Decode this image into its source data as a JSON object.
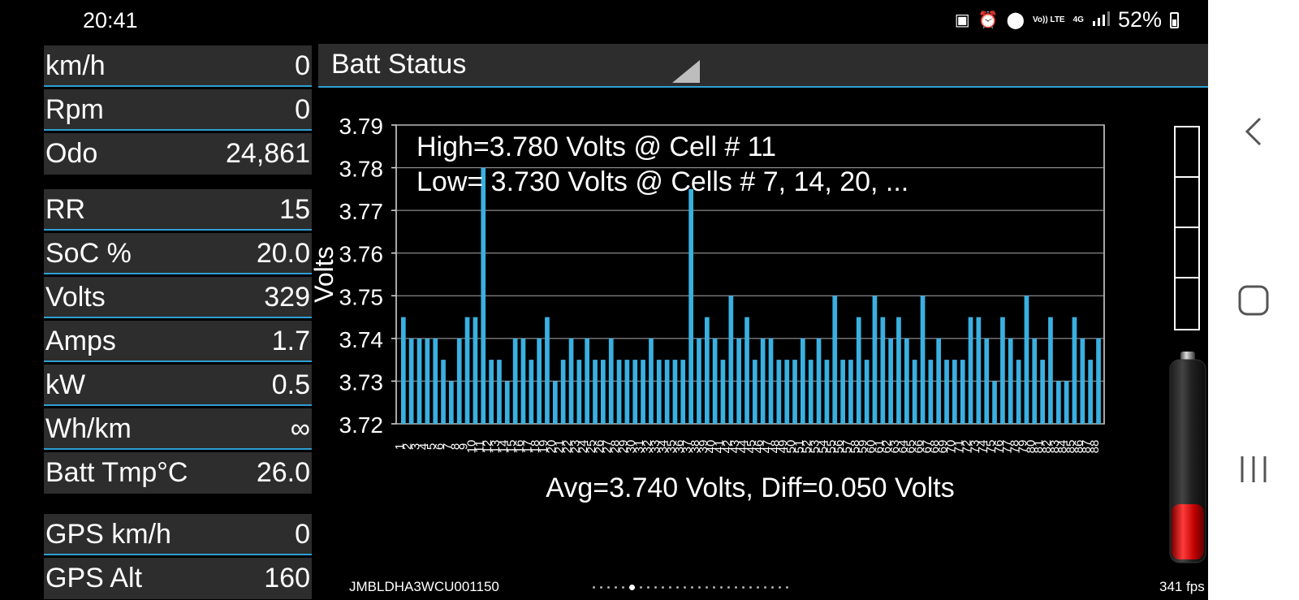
{
  "status_bar": {
    "time": "20:41",
    "icons": [
      "battery-saver-icon",
      "alarm-icon",
      "location-icon",
      "volte-icon",
      "4g-icon",
      "signal-icon"
    ],
    "volte_text": "Vo)) LTE",
    "net_text": "4G",
    "battery_percent": "52%"
  },
  "readings": [
    {
      "label": "km/h",
      "value": "0"
    },
    {
      "label": "Rpm",
      "value": "0"
    },
    {
      "label": "Odo",
      "value": "24,861"
    },
    {
      "label": "RR",
      "value": "15"
    },
    {
      "label": "SoC %",
      "value": "20.0"
    },
    {
      "label": "Volts",
      "value": "329"
    },
    {
      "label": "Amps",
      "value": "1.7"
    },
    {
      "label": "kW",
      "value": "0.5"
    },
    {
      "label": "Wh/km",
      "value": "∞"
    },
    {
      "label": "Batt Tmp°C",
      "value": "26.0"
    },
    {
      "label": "GPS km/h",
      "value": "0"
    },
    {
      "label": "GPS Alt",
      "value": "160"
    }
  ],
  "header": {
    "title": "Batt Status"
  },
  "chart_data": {
    "type": "bar",
    "ylabel": "Volts",
    "ylim": [
      3.72,
      3.79
    ],
    "yticks": [
      "3.79",
      "3.78",
      "3.77",
      "3.76",
      "3.75",
      "3.74",
      "3.73",
      "3.72"
    ],
    "grid": true,
    "annotation_high": "High=3.780 Volts @ Cell # 11",
    "annotation_low": "Low= 3.730 Volts @ Cells # 7, 14, 20,  ...",
    "footer": "Avg=3.740 Volts, Diff=0.050 Volts",
    "bar_color": "#3ab0e0",
    "values": [
      3.745,
      3.74,
      3.74,
      3.74,
      3.74,
      3.735,
      3.73,
      3.74,
      3.745,
      3.745,
      3.78,
      3.735,
      3.735,
      3.73,
      3.74,
      3.74,
      3.735,
      3.74,
      3.745,
      3.73,
      3.735,
      3.74,
      3.735,
      3.74,
      3.735,
      3.735,
      3.74,
      3.735,
      3.735,
      3.735,
      3.735,
      3.74,
      3.735,
      3.735,
      3.735,
      3.735,
      3.775,
      3.74,
      3.745,
      3.74,
      3.735,
      3.75,
      3.74,
      3.745,
      3.735,
      3.74,
      3.74,
      3.735,
      3.735,
      3.735,
      3.74,
      3.735,
      3.74,
      3.735,
      3.75,
      3.735,
      3.735,
      3.745,
      3.735,
      3.75,
      3.745,
      3.74,
      3.745,
      3.74,
      3.735,
      3.75,
      3.735,
      3.74,
      3.735,
      3.735,
      3.735,
      3.745,
      3.745,
      3.74,
      3.73,
      3.745,
      3.74,
      3.735,
      3.75,
      3.74,
      3.735,
      3.745,
      3.73,
      3.73,
      3.745,
      3.74,
      3.735,
      3.74
    ]
  },
  "footer": {
    "vin": "JMBLDHA3WCU001150",
    "fps": "341 fps"
  },
  "nav": {
    "icons": [
      "back-icon",
      "home-icon",
      "recents-icon"
    ]
  }
}
